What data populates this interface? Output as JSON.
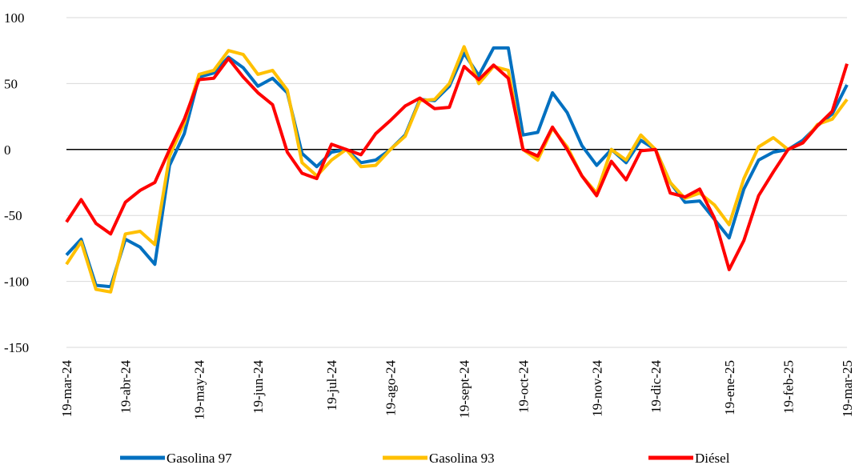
{
  "chart_data": {
    "type": "line",
    "categories": [
      "19-mar-24",
      null,
      null,
      null,
      "19-abr-24",
      null,
      null,
      null,
      null,
      "19-may-24",
      null,
      null,
      null,
      "19-jun-24",
      null,
      null,
      null,
      null,
      "19-jul-24",
      null,
      null,
      null,
      "19-ago-24",
      null,
      null,
      null,
      null,
      "19-sept-24",
      null,
      null,
      null,
      "19-oct-24",
      null,
      null,
      null,
      null,
      "19-nov-24",
      null,
      null,
      null,
      "19-dic-24",
      null,
      null,
      null,
      null,
      "19-ene-25",
      null,
      null,
      null,
      "19-feb-25",
      null,
      null,
      null,
      "19-mar-25"
    ],
    "series": [
      {
        "name": "Gasolina 97",
        "color": "#0070c0",
        "values": [
          -80,
          -68,
          -103,
          -104,
          -68,
          -74,
          -87,
          -12,
          12,
          55,
          58,
          70,
          62,
          48,
          54,
          43,
          -3,
          -13,
          -2,
          0,
          -10,
          -8,
          0,
          11,
          38,
          37,
          48,
          73,
          56,
          77,
          77,
          11,
          13,
          43,
          28,
          3,
          -12,
          0,
          -10,
          7,
          0,
          -25,
          -40,
          -39,
          -53,
          -67,
          -30,
          -8,
          -2,
          0,
          7,
          18,
          27,
          49
        ]
      },
      {
        "name": "Gasolina 93",
        "color": "#ffc000",
        "values": [
          -87,
          -70,
          -106,
          -108,
          -64,
          -62,
          -72,
          -5,
          20,
          57,
          60,
          75,
          72,
          57,
          60,
          45,
          -10,
          -20,
          -8,
          0,
          -13,
          -12,
          0,
          10,
          37,
          38,
          50,
          78,
          50,
          63,
          60,
          0,
          -8,
          16,
          2,
          -20,
          -33,
          0,
          -8,
          11,
          0,
          -25,
          -37,
          -33,
          -42,
          -57,
          -22,
          2,
          9,
          0,
          5,
          19,
          23,
          38
        ]
      },
      {
        "name": "Diésel",
        "color": "#ff0000",
        "values": [
          -55,
          -38,
          -56,
          -64,
          -40,
          -31,
          -25,
          0,
          23,
          53,
          54,
          69,
          55,
          43,
          34,
          -2,
          -18,
          -22,
          4,
          0,
          -4,
          12,
          22,
          33,
          39,
          31,
          32,
          63,
          53,
          64,
          54,
          0,
          -5,
          17,
          0,
          -20,
          -35,
          -9,
          -23,
          -1,
          0,
          -33,
          -36,
          -30,
          -52,
          -91,
          -69,
          -35,
          -17,
          0,
          5,
          18,
          29,
          65
        ]
      }
    ],
    "ylim": [
      -150,
      100
    ],
    "yticks": [
      -150,
      -100,
      -50,
      0,
      50,
      100
    ],
    "grid": true
  }
}
